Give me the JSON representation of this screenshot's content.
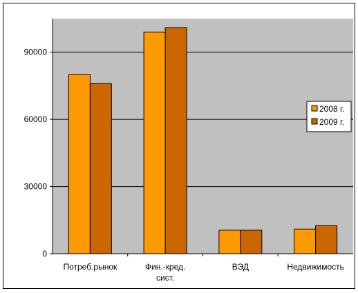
{
  "chart_data": {
    "type": "bar",
    "title": "",
    "xlabel": "",
    "ylabel": "",
    "categories": [
      [
        "Потреб.рынок"
      ],
      [
        "Фин.-кред.",
        "сист."
      ],
      [
        "ВЭД"
      ],
      [
        "Недвижимость"
      ]
    ],
    "series": [
      {
        "name": "2008 г.",
        "color": "#FF9900",
        "values": [
          80000,
          99000,
          10500,
          11000
        ]
      },
      {
        "name": "2009 г.",
        "color": "#CC6600",
        "values": [
          76000,
          101000,
          10500,
          12500
        ]
      }
    ],
    "ylim": [
      0,
      105000
    ],
    "yticks": [
      "0",
      "30000",
      "60000",
      "90000"
    ],
    "grid": true,
    "plot_background": "#C0C0C0",
    "legend_position": "right"
  }
}
